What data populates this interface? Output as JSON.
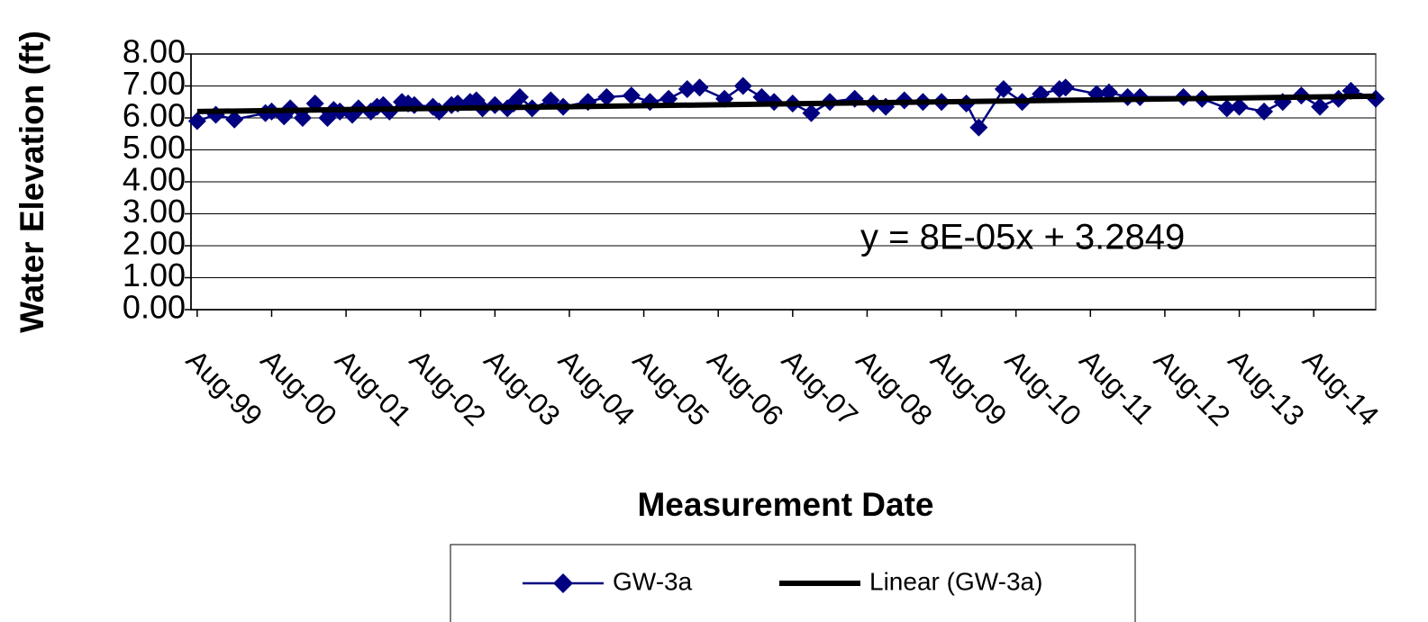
{
  "chart_data": {
    "type": "line",
    "x_label": "Measurement Date",
    "y_label": "Water Elevation (ft)",
    "annotation": "y = 8E-05x + 3.2849",
    "xlim": [
      "1999-07",
      "2015-06"
    ],
    "xticks": [
      {
        "value": "1999-08",
        "label": "Aug-99"
      },
      {
        "value": "2000-08",
        "label": "Aug-00"
      },
      {
        "value": "2001-08",
        "label": "Aug-01"
      },
      {
        "value": "2002-08",
        "label": "Aug-02"
      },
      {
        "value": "2003-08",
        "label": "Aug-03"
      },
      {
        "value": "2004-08",
        "label": "Aug-04"
      },
      {
        "value": "2005-08",
        "label": "Aug-05"
      },
      {
        "value": "2006-08",
        "label": "Aug-06"
      },
      {
        "value": "2007-08",
        "label": "Aug-07"
      },
      {
        "value": "2008-08",
        "label": "Aug-08"
      },
      {
        "value": "2009-08",
        "label": "Aug-09"
      },
      {
        "value": "2010-08",
        "label": "Aug-10"
      },
      {
        "value": "2011-08",
        "label": "Aug-11"
      },
      {
        "value": "2012-08",
        "label": "Aug-12"
      },
      {
        "value": "2013-08",
        "label": "Aug-13"
      },
      {
        "value": "2014-08",
        "label": "Aug-14"
      }
    ],
    "ylim": [
      0,
      8
    ],
    "yticks": [
      {
        "value": 0,
        "label": "0.00"
      },
      {
        "value": 1,
        "label": "1.00"
      },
      {
        "value": 2,
        "label": "2.00"
      },
      {
        "value": 3,
        "label": "3.00"
      },
      {
        "value": 4,
        "label": "4.00"
      },
      {
        "value": 5,
        "label": "5.00"
      },
      {
        "value": 6,
        "label": "6.00"
      },
      {
        "value": 7,
        "label": "7.00"
      },
      {
        "value": 8,
        "label": "8.00"
      }
    ],
    "grid": true,
    "legend": "bottom",
    "series": [
      {
        "name": "GW-3a",
        "color": "#000080",
        "marker": "diamond",
        "x": [
          "1999-08",
          "1999-11",
          "2000-02",
          "2000-07",
          "2000-08",
          "2000-10",
          "2000-11",
          "2001-01",
          "2001-03",
          "2001-05",
          "2001-06",
          "2001-07",
          "2001-09",
          "2001-10",
          "2001-12",
          "2002-01",
          "2002-02",
          "2002-03",
          "2002-05",
          "2002-06",
          "2002-07",
          "2002-10",
          "2002-11",
          "2003-01",
          "2003-02",
          "2003-04",
          "2003-05",
          "2003-06",
          "2003-08",
          "2003-10",
          "2003-11",
          "2003-12",
          "2004-02",
          "2004-05",
          "2004-07",
          "2004-11",
          "2005-02",
          "2005-06",
          "2005-09",
          "2005-12",
          "2006-03",
          "2006-05",
          "2006-09",
          "2006-12",
          "2007-03",
          "2007-05",
          "2007-08",
          "2007-11",
          "2008-02",
          "2008-06",
          "2008-09",
          "2008-11",
          "2009-02",
          "2009-05",
          "2009-08",
          "2009-12",
          "2010-02",
          "2010-06",
          "2010-09",
          "2010-12",
          "2011-03",
          "2011-04",
          "2011-09",
          "2011-11",
          "2012-02",
          "2012-04",
          "2012-11",
          "2013-02",
          "2013-06",
          "2013-08",
          "2013-12",
          "2014-03",
          "2014-06",
          "2014-09",
          "2014-12",
          "2015-02",
          "2015-06"
        ],
        "values": [
          5.9,
          6.1,
          5.95,
          6.15,
          6.2,
          6.05,
          6.3,
          6.0,
          6.45,
          6.0,
          6.25,
          6.2,
          6.1,
          6.3,
          6.2,
          6.35,
          6.4,
          6.2,
          6.5,
          6.45,
          6.4,
          6.35,
          6.2,
          6.4,
          6.45,
          6.5,
          6.55,
          6.3,
          6.4,
          6.3,
          6.45,
          6.65,
          6.3,
          6.55,
          6.35,
          6.5,
          6.65,
          6.7,
          6.5,
          6.6,
          6.9,
          6.95,
          6.6,
          7.0,
          6.65,
          6.5,
          6.45,
          6.15,
          6.5,
          6.6,
          6.45,
          6.35,
          6.55,
          6.5,
          6.5,
          6.45,
          5.7,
          6.9,
          6.5,
          6.75,
          6.9,
          6.95,
          6.75,
          6.8,
          6.65,
          6.65,
          6.65,
          6.6,
          6.3,
          6.35,
          6.2,
          6.5,
          6.7,
          6.35,
          6.6,
          6.85,
          6.6
        ]
      },
      {
        "name": "Linear (GW-3a)",
        "color": "#000000",
        "marker": "none",
        "x": [
          "1999-08",
          "2015-06"
        ],
        "values": [
          6.2,
          6.68
        ]
      }
    ]
  }
}
